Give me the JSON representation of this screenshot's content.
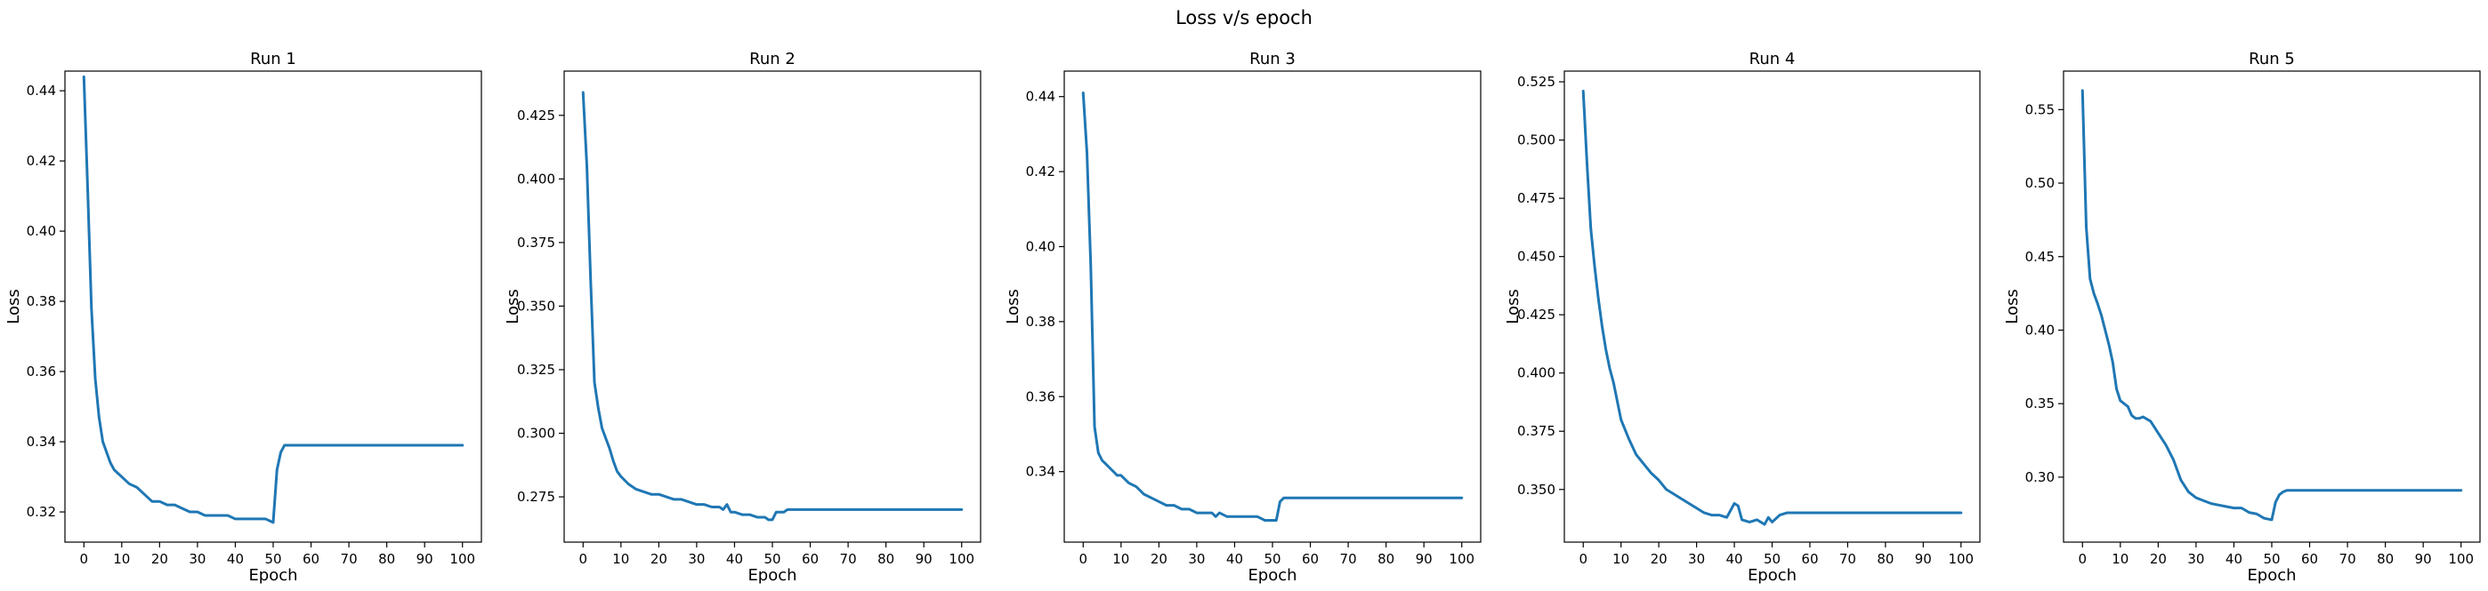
{
  "figure": {
    "suptitle": "Loss v/s epoch",
    "line_color": "#1f77b4"
  },
  "chart_data": [
    {
      "type": "line",
      "title": "Run 1",
      "xlabel": "Epoch",
      "ylabel": "Loss",
      "xlim": [
        -5,
        105
      ],
      "ylim": [
        0.3114,
        0.4456
      ],
      "xticks": [
        0,
        10,
        20,
        30,
        40,
        50,
        60,
        70,
        80,
        90,
        100
      ],
      "yticks": [
        0.32,
        0.34,
        0.36,
        0.38,
        0.4,
        0.42,
        0.44
      ],
      "ytick_labels": [
        "0.32",
        "0.34",
        "0.36",
        "0.38",
        "0.40",
        "0.42",
        "0.44"
      ],
      "grid": false,
      "series": [
        {
          "x": [
            0,
            1,
            2,
            3,
            4,
            5,
            6,
            7,
            8,
            9,
            10,
            12,
            14,
            16,
            18,
            20,
            22,
            24,
            26,
            28,
            30,
            32,
            34,
            36,
            38,
            40,
            42,
            44,
            46,
            48,
            50,
            51,
            52,
            53,
            54,
            56,
            58,
            60,
            70,
            80,
            90,
            100
          ],
          "y": [
            0.444,
            0.412,
            0.378,
            0.358,
            0.347,
            0.34,
            0.337,
            0.334,
            0.332,
            0.331,
            0.33,
            0.328,
            0.327,
            0.325,
            0.323,
            0.323,
            0.322,
            0.322,
            0.321,
            0.32,
            0.32,
            0.319,
            0.319,
            0.319,
            0.319,
            0.318,
            0.318,
            0.318,
            0.318,
            0.318,
            0.317,
            0.332,
            0.337,
            0.339,
            0.339,
            0.339,
            0.339,
            0.339,
            0.339,
            0.339,
            0.339,
            0.339
          ]
        }
      ]
    },
    {
      "type": "line",
      "title": "Run 2",
      "xlabel": "Epoch",
      "ylabel": "Loss",
      "xlim": [
        -5,
        105
      ],
      "ylim": [
        0.2572,
        0.4424
      ],
      "xticks": [
        0,
        10,
        20,
        30,
        40,
        50,
        60,
        70,
        80,
        90,
        100
      ],
      "yticks": [
        0.275,
        0.3,
        0.325,
        0.35,
        0.375,
        0.4,
        0.425
      ],
      "ytick_labels": [
        "0.275",
        "0.300",
        "0.325",
        "0.350",
        "0.375",
        "0.400",
        "0.425"
      ],
      "grid": false,
      "series": [
        {
          "x": [
            0,
            1,
            2,
            3,
            4,
            5,
            6,
            7,
            8,
            9,
            10,
            12,
            14,
            16,
            18,
            20,
            22,
            24,
            26,
            28,
            30,
            32,
            34,
            36,
            37,
            38,
            39,
            40,
            42,
            44,
            46,
            48,
            49,
            50,
            51,
            52,
            53,
            54,
            56,
            58,
            60,
            70,
            80,
            90,
            100
          ],
          "y": [
            0.434,
            0.405,
            0.36,
            0.32,
            0.31,
            0.302,
            0.298,
            0.294,
            0.289,
            0.285,
            0.283,
            0.28,
            0.278,
            0.277,
            0.276,
            0.276,
            0.275,
            0.274,
            0.274,
            0.273,
            0.272,
            0.272,
            0.271,
            0.271,
            0.27,
            0.272,
            0.269,
            0.269,
            0.268,
            0.268,
            0.267,
            0.267,
            0.266,
            0.266,
            0.269,
            0.269,
            0.269,
            0.27,
            0.27,
            0.27,
            0.27,
            0.27,
            0.27,
            0.27,
            0.27
          ]
        }
      ]
    },
    {
      "type": "line",
      "title": "Run 3",
      "xlabel": "Epoch",
      "ylabel": "Loss",
      "xlim": [
        -5,
        105
      ],
      "ylim": [
        0.3212,
        0.4468
      ],
      "xticks": [
        0,
        10,
        20,
        30,
        40,
        50,
        60,
        70,
        80,
        90,
        100
      ],
      "yticks": [
        0.34,
        0.36,
        0.38,
        0.4,
        0.42,
        0.44
      ],
      "ytick_labels": [
        "0.34",
        "0.36",
        "0.38",
        "0.40",
        "0.42",
        "0.44"
      ],
      "grid": false,
      "series": [
        {
          "x": [
            0,
            1,
            2,
            3,
            4,
            5,
            6,
            7,
            8,
            9,
            10,
            12,
            14,
            16,
            18,
            20,
            22,
            24,
            26,
            28,
            30,
            32,
            34,
            35,
            36,
            38,
            40,
            42,
            44,
            46,
            48,
            50,
            51,
            52,
            53,
            54,
            56,
            58,
            60,
            70,
            80,
            90,
            100
          ],
          "y": [
            0.441,
            0.425,
            0.395,
            0.352,
            0.345,
            0.343,
            0.342,
            0.341,
            0.34,
            0.339,
            0.339,
            0.337,
            0.336,
            0.334,
            0.333,
            0.332,
            0.331,
            0.331,
            0.33,
            0.33,
            0.329,
            0.329,
            0.329,
            0.328,
            0.329,
            0.328,
            0.328,
            0.328,
            0.328,
            0.328,
            0.327,
            0.327,
            0.327,
            0.332,
            0.333,
            0.333,
            0.333,
            0.333,
            0.333,
            0.333,
            0.333,
            0.333,
            0.333
          ]
        }
      ]
    },
    {
      "type": "line",
      "title": "Run 4",
      "xlabel": "Epoch",
      "ylabel": "Loss",
      "xlim": [
        -5,
        105
      ],
      "ylim": [
        0.3274,
        0.5296
      ],
      "xticks": [
        0,
        10,
        20,
        30,
        40,
        50,
        60,
        70,
        80,
        90,
        100
      ],
      "yticks": [
        0.35,
        0.375,
        0.4,
        0.425,
        0.45,
        0.475,
        0.5,
        0.525
      ],
      "ytick_labels": [
        "0.350",
        "0.375",
        "0.400",
        "0.425",
        "0.450",
        "0.475",
        "0.500",
        "0.525"
      ],
      "grid": false,
      "series": [
        {
          "x": [
            0,
            1,
            2,
            3,
            4,
            5,
            6,
            7,
            8,
            9,
            10,
            12,
            14,
            16,
            18,
            20,
            22,
            24,
            26,
            28,
            30,
            32,
            34,
            36,
            38,
            40,
            41,
            42,
            44,
            46,
            48,
            49,
            50,
            52,
            54,
            56,
            58,
            60,
            70,
            80,
            90,
            100
          ],
          "y": [
            0.521,
            0.49,
            0.462,
            0.446,
            0.432,
            0.42,
            0.41,
            0.402,
            0.396,
            0.388,
            0.38,
            0.372,
            0.365,
            0.361,
            0.357,
            0.354,
            0.35,
            0.348,
            0.346,
            0.344,
            0.342,
            0.34,
            0.339,
            0.339,
            0.338,
            0.344,
            0.343,
            0.337,
            0.336,
            0.337,
            0.335,
            0.338,
            0.336,
            0.339,
            0.34,
            0.34,
            0.34,
            0.34,
            0.34,
            0.34,
            0.34,
            0.34
          ]
        }
      ]
    },
    {
      "type": "line",
      "title": "Run 5",
      "xlabel": "Epoch",
      "ylabel": "Loss",
      "xlim": [
        -5,
        105
      ],
      "ylim": [
        0.2558,
        0.5762
      ],
      "xticks": [
        0,
        10,
        20,
        30,
        40,
        50,
        60,
        70,
        80,
        90,
        100
      ],
      "yticks": [
        0.3,
        0.35,
        0.4,
        0.45,
        0.5,
        0.55
      ],
      "ytick_labels": [
        "0.30",
        "0.35",
        "0.40",
        "0.45",
        "0.50",
        "0.55"
      ],
      "grid": false,
      "series": [
        {
          "x": [
            0,
            1,
            2,
            3,
            4,
            5,
            6,
            7,
            8,
            9,
            10,
            11,
            12,
            13,
            14,
            15,
            16,
            18,
            20,
            22,
            24,
            26,
            28,
            30,
            32,
            34,
            36,
            38,
            40,
            42,
            44,
            46,
            48,
            50,
            51,
            52,
            53,
            54,
            56,
            58,
            60,
            70,
            80,
            90,
            100
          ],
          "y": [
            0.563,
            0.47,
            0.435,
            0.425,
            0.418,
            0.41,
            0.4,
            0.39,
            0.378,
            0.36,
            0.352,
            0.35,
            0.348,
            0.342,
            0.34,
            0.34,
            0.341,
            0.338,
            0.33,
            0.322,
            0.312,
            0.298,
            0.29,
            0.286,
            0.284,
            0.282,
            0.281,
            0.28,
            0.279,
            0.279,
            0.276,
            0.275,
            0.272,
            0.271,
            0.283,
            0.288,
            0.29,
            0.291,
            0.291,
            0.291,
            0.291,
            0.291,
            0.291,
            0.291,
            0.291
          ]
        }
      ]
    }
  ]
}
